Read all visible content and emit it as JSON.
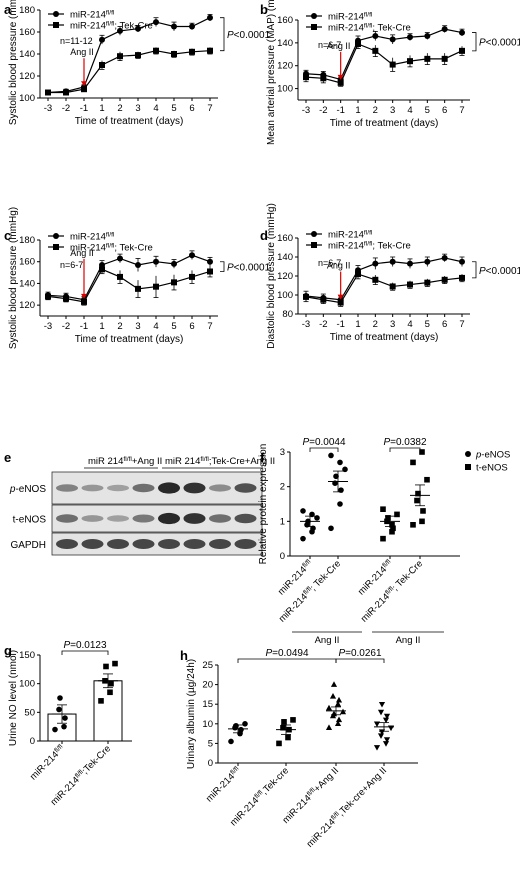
{
  "chart_data": [
    {
      "id": "a",
      "type": "line",
      "panel_label": "a",
      "ylabel": "Systolic blood pressure (mmHg)",
      "xlabel": "Time of treatment (days)",
      "x": [
        -3,
        -2,
        -1,
        1,
        2,
        3,
        4,
        5,
        6,
        7
      ],
      "ylim": [
        100,
        180
      ],
      "yticks": [
        100,
        120,
        140,
        160,
        180
      ],
      "annotation_n": "n=11-12",
      "ang_label": "Ang II",
      "pvalue": "P<0.0001",
      "series": [
        {
          "name": "miR-214",
          "sup": "fl/fl",
          "marker": "circle",
          "values": [
            105,
            106,
            110,
            153,
            161,
            163,
            169,
            165,
            165,
            173
          ],
          "err": [
            2,
            2,
            2,
            4,
            4,
            3,
            4,
            4,
            3,
            3
          ]
        },
        {
          "name": "miR-214",
          "sup": "fl/fl",
          "suffix": "; Tek-Cre",
          "marker": "square",
          "values": [
            105,
            105,
            108,
            130,
            138,
            139,
            143,
            140,
            142,
            143
          ],
          "err": [
            2,
            2,
            2,
            4,
            4,
            3,
            3,
            3,
            3,
            3
          ]
        }
      ]
    },
    {
      "id": "b",
      "type": "line",
      "panel_label": "b",
      "ylabel": "Mean arterial pressure (MAP) (mmHg)",
      "xlabel": "Time of treatment (days)",
      "x": [
        -3,
        -2,
        -1,
        1,
        2,
        3,
        4,
        5,
        6,
        7
      ],
      "ylim": [
        90,
        160
      ],
      "yticks": [
        100,
        120,
        140,
        160
      ],
      "annotation_n": "n=6-7",
      "ang_label": "Ang II",
      "pvalue": "P<0.0001",
      "series": [
        {
          "name": "miR-214",
          "sup": "fl/fl",
          "marker": "circle",
          "values": [
            113,
            112,
            108,
            142,
            146,
            143,
            145,
            146,
            152,
            149
          ],
          "err": [
            3,
            3,
            3,
            4,
            4,
            4,
            3,
            3,
            3,
            3
          ]
        },
        {
          "name": "miR-214",
          "sup": "fl/fl",
          "suffix": "; Tek-Cre",
          "marker": "square",
          "values": [
            110,
            109,
            105,
            139,
            133,
            121,
            124,
            126,
            126,
            133
          ],
          "err": [
            4,
            4,
            3,
            4,
            5,
            6,
            5,
            5,
            5,
            4
          ]
        }
      ]
    },
    {
      "id": "c",
      "type": "line",
      "panel_label": "c",
      "ylabel": "Systolic blood pressure (mmHg)",
      "xlabel": "Time of treatment (days)",
      "x": [
        -3,
        -2,
        -1,
        1,
        2,
        3,
        4,
        5,
        6,
        7
      ],
      "ylim": [
        110,
        180
      ],
      "yticks": [
        120,
        140,
        160,
        180
      ],
      "annotation_n": "n=6-7",
      "ang_label": "Ang II",
      "pvalue": "P<0.0001",
      "series": [
        {
          "name": "miR-214",
          "sup": "fl/fl",
          "marker": "circle",
          "values": [
            129,
            128,
            125,
            157,
            163,
            157,
            160,
            158,
            166,
            160
          ],
          "err": [
            3,
            3,
            3,
            4,
            4,
            6,
            5,
            4,
            4,
            4
          ]
        },
        {
          "name": "miR-214",
          "sup": "fl/fl",
          "suffix": "; Tek-Cre",
          "marker": "square",
          "values": [
            128,
            126,
            123,
            153,
            146,
            135,
            137,
            141,
            146,
            151
          ],
          "err": [
            3,
            3,
            3,
            4,
            6,
            8,
            10,
            7,
            6,
            5
          ]
        }
      ]
    },
    {
      "id": "d",
      "type": "line",
      "panel_label": "d",
      "ylabel": "Diastolic blood pressure (mmHg)",
      "xlabel": "Time of treatment (days)",
      "x": [
        -3,
        -2,
        -1,
        1,
        2,
        3,
        4,
        5,
        6,
        7
      ],
      "ylim": [
        80,
        160
      ],
      "yticks": [
        80,
        100,
        120,
        140,
        160
      ],
      "annotation_n": "n=6-7",
      "ang_label": "Ang II",
      "pvalue": "P<0.0001",
      "series": [
        {
          "name": "miR-214",
          "sup": "fl/fl",
          "marker": "circle",
          "values": [
            99,
            97,
            95,
            126,
            133,
            135,
            133,
            135,
            139,
            135
          ],
          "err": [
            5,
            4,
            4,
            5,
            6,
            5,
            5,
            5,
            4,
            5
          ]
        },
        {
          "name": "miR-214",
          "sup": "fl/fl",
          "suffix": "; Tek-Cre",
          "marker": "square",
          "values": [
            98,
            95,
            92,
            122,
            116,
            109,
            111,
            113,
            116,
            118
          ],
          "err": [
            5,
            4,
            4,
            5,
            5,
            4,
            4,
            4,
            4,
            4
          ]
        }
      ]
    },
    {
      "id": "f",
      "type": "scatter",
      "panel_label": "f",
      "ylabel": "Relative protein expression",
      "ylim": [
        0,
        3
      ],
      "yticks": [
        0,
        1,
        2,
        3
      ],
      "legend": [
        {
          "name": "p-eNOS",
          "marker": "circle"
        },
        {
          "name": "t-eNOS",
          "marker": "square"
        }
      ],
      "groups": [
        {
          "label": "miR-214",
          "sup": "fl/fl",
          "suffix": "",
          "marker": "circle",
          "mean": 1.0,
          "sem": 0.15,
          "points": [
            0.5,
            0.7,
            0.8,
            0.9,
            1.0,
            1.1,
            1.3,
            1.2
          ]
        },
        {
          "label": "miR-214",
          "sup": "fl/fl",
          "suffix": "; Tek-Cre",
          "marker": "circle",
          "mean": 2.15,
          "sem": 0.3,
          "points": [
            0.8,
            1.5,
            1.9,
            2.1,
            2.3,
            2.5,
            2.9,
            2.7
          ]
        },
        {
          "label": "miR-214",
          "sup": "fl/fl",
          "suffix": "",
          "marker": "square",
          "mean": 1.0,
          "sem": 0.15,
          "points": [
            0.5,
            0.7,
            0.8,
            1.0,
            1.1,
            1.2,
            1.35,
            0.9
          ]
        },
        {
          "label": "miR-214",
          "sup": "fl/fl",
          "suffix": "; Tek-Cre",
          "marker": "square",
          "mean": 1.75,
          "sem": 0.3,
          "points": [
            0.9,
            1.0,
            1.3,
            1.6,
            1.8,
            2.2,
            2.7,
            3.0
          ]
        }
      ],
      "comparisons": [
        {
          "from": 0,
          "to": 1,
          "label": "P=0.0044"
        },
        {
          "from": 2,
          "to": 3,
          "label": "P=0.0382"
        }
      ],
      "bottom_groups": [
        "Ang II",
        "Ang II"
      ]
    },
    {
      "id": "g",
      "type": "bar",
      "panel_label": "g",
      "ylabel": "Urine NO level (nmol)",
      "ylim": [
        0,
        150
      ],
      "yticks": [
        0,
        50,
        100,
        150
      ],
      "groups": [
        {
          "label": "miR-214",
          "sup": "fl/fl",
          "suffix": "",
          "marker": "circle",
          "mean": 47,
          "sem": 16,
          "points": [
            20,
            25,
            40,
            55,
            75
          ]
        },
        {
          "label": "miR-214",
          "sup": "fl/fl",
          "suffix": ";Tek-Cre",
          "marker": "square",
          "mean": 105,
          "sem": 12,
          "points": [
            70,
            85,
            100,
            105,
            130,
            135
          ]
        }
      ],
      "comparisons": [
        {
          "from": 0,
          "to": 1,
          "label": "P=0.0123"
        }
      ]
    },
    {
      "id": "h",
      "type": "scatter",
      "panel_label": "h",
      "ylabel": "Urinary albumin (µg/24h)",
      "ylim": [
        0,
        25
      ],
      "yticks": [
        0,
        5,
        10,
        15,
        20,
        25
      ],
      "groups": [
        {
          "label": "miR-214",
          "sup": "fl/fl",
          "suffix": "",
          "marker": "circle",
          "mean": 8.7,
          "sem": 1.0,
          "points": [
            5.5,
            7.5,
            8.5,
            9,
            9.5,
            10
          ]
        },
        {
          "label": "miR-214",
          "sup": "fl/fl",
          "suffix": ",Tek-cre",
          "marker": "square",
          "mean": 8.5,
          "sem": 1.2,
          "points": [
            5,
            6.5,
            8.5,
            9,
            10.5,
            11
          ]
        },
        {
          "label": "miR-214",
          "sup": "fl/fl",
          "suffix": "+Ang II",
          "marker": "triangle-up",
          "mean": 13.3,
          "sem": 1.0,
          "points": [
            9,
            10,
            11,
            12,
            12.5,
            13,
            14,
            15,
            16,
            17,
            20
          ]
        },
        {
          "label": "miR-214",
          "sup": "fl/fl",
          "suffix": ",Tek-cre+Ang II",
          "marker": "triangle-down",
          "mean": 9.2,
          "sem": 1.1,
          "points": [
            4,
            5,
            6,
            7,
            8,
            9,
            10,
            11,
            12,
            13,
            15
          ]
        }
      ],
      "comparisons": [
        {
          "from": 0,
          "to": 2,
          "label": "P=0.0494"
        },
        {
          "from": 2,
          "to": 3,
          "label": "P=0.0261"
        }
      ]
    }
  ],
  "blot": {
    "panel_label": "e",
    "group1": "miR 214",
    "group1_sup": "fl/fl",
    "group1_suffix": "+Ang II",
    "group2": "miR 214",
    "group2_sup": "fl/fl",
    "group2_suffix": ";Tek-Cre+Ang II",
    "rows": [
      {
        "label_prefix": "p",
        "label_rest": "-eNOS",
        "intensities": [
          0.45,
          0.35,
          0.3,
          0.55,
          0.9,
          0.85,
          0.4,
          0.7
        ]
      },
      {
        "label_prefix": "",
        "label_rest": "t-eNOS",
        "intensities": [
          0.55,
          0.35,
          0.3,
          0.5,
          0.9,
          0.85,
          0.55,
          0.7
        ]
      },
      {
        "label_prefix": "",
        "label_rest": "GAPDH",
        "intensities": [
          0.75,
          0.75,
          0.75,
          0.75,
          0.75,
          0.75,
          0.75,
          0.75
        ]
      }
    ]
  }
}
